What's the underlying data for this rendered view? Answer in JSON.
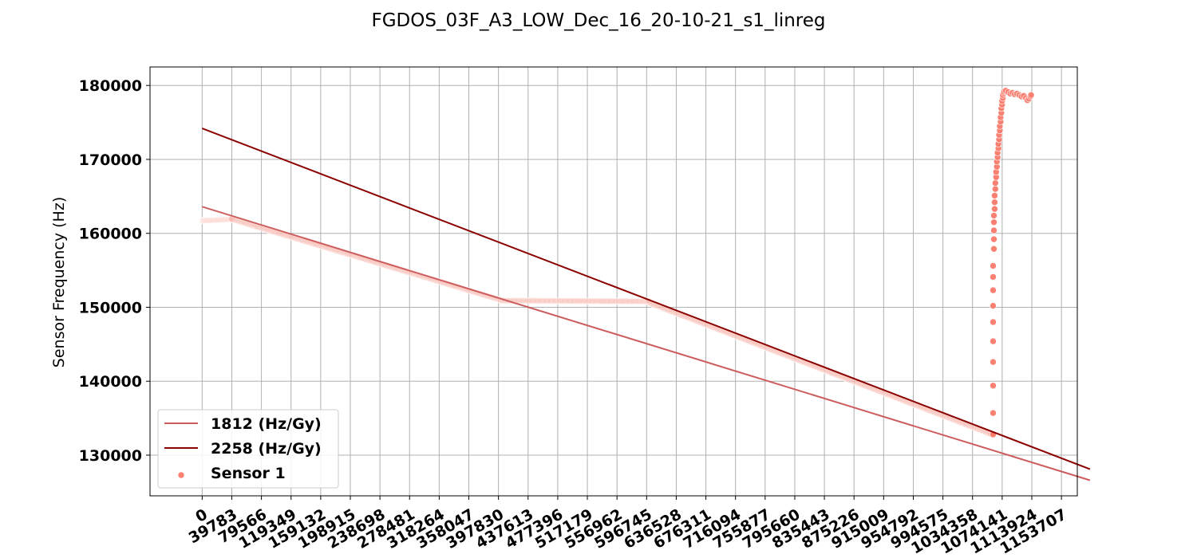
{
  "chart_data": {
    "type": "scatter",
    "title": "FGDOS_03F_A3_LOW_Dec_16_20-10-21_s1_linreg",
    "xlabel": "",
    "ylabel": "Sensor Frequency (Hz)",
    "xlim": [
      -70000,
      1175000
    ],
    "ylim": [
      124500,
      182500
    ],
    "grid": true,
    "legend_position": "lower-left",
    "x_ticks": [
      0,
      39783,
      79566,
      119349,
      159132,
      198915,
      238698,
      278481,
      318264,
      358047,
      397830,
      437613,
      477396,
      517179,
      556962,
      596745,
      636528,
      676311,
      716094,
      755877,
      795660,
      835443,
      875226,
      915009,
      954792,
      994575,
      1034358,
      1074141,
      1113924,
      1153707
    ],
    "y_ticks": [
      130000,
      140000,
      150000,
      160000,
      170000,
      180000
    ],
    "series": [
      {
        "name": "1812 (Hz/Gy)",
        "kind": "line",
        "color": "#cd5c5c",
        "x": [
          0,
          1192000
        ],
        "y": [
          163600,
          126600
        ]
      },
      {
        "name": "2258 (Hz/Gy)",
        "kind": "line",
        "color": "#8b0000",
        "x": [
          0,
          1192000
        ],
        "y": [
          174200,
          128100
        ]
      },
      {
        "name": "Sensor 1",
        "kind": "scatter",
        "color": "#fa8072",
        "segments": [
          {
            "x_start": 0,
            "x_end": 40000,
            "y_start": 161700,
            "y_end": 161900,
            "count": 90
          },
          {
            "x_start": 40000,
            "x_end": 400000,
            "y_start": 161900,
            "y_end": 151000,
            "count": 360
          },
          {
            "x_start": 400000,
            "x_end": 600000,
            "y_start": 150900,
            "y_end": 150800,
            "count": 220
          },
          {
            "x_start": 600000,
            "x_end": 1060000,
            "y_start": 150600,
            "y_end": 132800,
            "count": 420
          }
        ],
        "points": [
          {
            "x": 1062000,
            "y": 132800
          },
          {
            "x": 1062000,
            "y": 135700
          },
          {
            "x": 1062000,
            "y": 139400
          },
          {
            "x": 1062000,
            "y": 142600
          },
          {
            "x": 1062000,
            "y": 145400
          },
          {
            "x": 1062000,
            "y": 148000
          },
          {
            "x": 1062000,
            "y": 150200
          },
          {
            "x": 1062000,
            "y": 152300
          },
          {
            "x": 1062000,
            "y": 154100
          },
          {
            "x": 1062000,
            "y": 155600
          },
          {
            "x": 1063000,
            "y": 157900
          },
          {
            "x": 1063000,
            "y": 159200
          },
          {
            "x": 1063000,
            "y": 160400
          },
          {
            "x": 1063000,
            "y": 161500
          },
          {
            "x": 1063000,
            "y": 162400
          },
          {
            "x": 1064000,
            "y": 163300
          },
          {
            "x": 1064000,
            "y": 164200
          },
          {
            "x": 1064000,
            "y": 165100
          },
          {
            "x": 1065000,
            "y": 166000
          },
          {
            "x": 1065000,
            "y": 166800
          },
          {
            "x": 1066000,
            "y": 167600
          },
          {
            "x": 1066000,
            "y": 168300
          },
          {
            "x": 1067000,
            "y": 169000
          },
          {
            "x": 1067000,
            "y": 169700
          },
          {
            "x": 1068000,
            "y": 170300
          },
          {
            "x": 1068000,
            "y": 170900
          },
          {
            "x": 1069000,
            "y": 171500
          },
          {
            "x": 1069000,
            "y": 172100
          },
          {
            "x": 1070000,
            "y": 172700
          },
          {
            "x": 1070000,
            "y": 173300
          },
          {
            "x": 1071000,
            "y": 173900
          },
          {
            "x": 1071000,
            "y": 174500
          },
          {
            "x": 1072000,
            "y": 175100
          },
          {
            "x": 1072000,
            "y": 175700
          },
          {
            "x": 1073000,
            "y": 176300
          },
          {
            "x": 1073000,
            "y": 176900
          },
          {
            "x": 1074000,
            "y": 177400
          },
          {
            "x": 1074000,
            "y": 177900
          },
          {
            "x": 1075000,
            "y": 178300
          },
          {
            "x": 1075000,
            "y": 178700
          },
          {
            "x": 1076000,
            "y": 179000
          },
          {
            "x": 1077000,
            "y": 179200
          },
          {
            "x": 1079000,
            "y": 179300
          },
          {
            "x": 1082000,
            "y": 179100
          },
          {
            "x": 1085000,
            "y": 178900
          },
          {
            "x": 1088000,
            "y": 179000
          },
          {
            "x": 1091000,
            "y": 178800
          },
          {
            "x": 1094000,
            "y": 178900
          },
          {
            "x": 1097000,
            "y": 178700
          },
          {
            "x": 1100000,
            "y": 178500
          },
          {
            "x": 1103000,
            "y": 178600
          },
          {
            "x": 1106000,
            "y": 178300
          },
          {
            "x": 1108000,
            "y": 178000
          },
          {
            "x": 1110000,
            "y": 178200
          },
          {
            "x": 1112000,
            "y": 178500
          },
          {
            "x": 1113000,
            "y": 178700
          }
        ]
      }
    ]
  }
}
